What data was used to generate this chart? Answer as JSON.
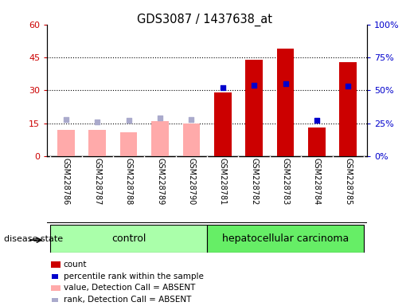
{
  "title": "GDS3087 / 1437638_at",
  "samples": [
    "GSM228786",
    "GSM228787",
    "GSM228788",
    "GSM228789",
    "GSM228790",
    "GSM228781",
    "GSM228782",
    "GSM228783",
    "GSM228784",
    "GSM228785"
  ],
  "groups": [
    "control",
    "control",
    "control",
    "control",
    "control",
    "hepatocellular carcinoma",
    "hepatocellular carcinoma",
    "hepatocellular carcinoma",
    "hepatocellular carcinoma",
    "hepatocellular carcinoma"
  ],
  "count_present": [
    null,
    null,
    null,
    null,
    null,
    29,
    44,
    49,
    13,
    43
  ],
  "count_absent": [
    12,
    12,
    11,
    16,
    15,
    null,
    null,
    null,
    null,
    null
  ],
  "percentile_present": [
    null,
    null,
    null,
    null,
    null,
    52,
    54,
    55,
    27,
    53
  ],
  "percentile_absent": [
    28,
    26,
    27,
    29,
    28,
    null,
    null,
    null,
    null,
    null
  ],
  "left_ylim": [
    0,
    60
  ],
  "left_yticks": [
    0,
    15,
    30,
    45,
    60
  ],
  "right_ylim": [
    0,
    100
  ],
  "right_yticks": [
    0,
    25,
    50,
    75,
    100
  ],
  "left_ytick_labels": [
    "0",
    "15",
    "30",
    "45",
    "60"
  ],
  "right_ytick_labels": [
    "0%",
    "25%",
    "50%",
    "75%",
    "100%"
  ],
  "color_count_present": "#cc0000",
  "color_count_absent": "#ffaaaa",
  "color_percentile_present": "#0000cc",
  "color_percentile_absent": "#aaaacc",
  "group_color_control": "#aaffaa",
  "group_color_hep": "#66ee66",
  "label_bg_color": "#cccccc",
  "disease_state_label": "disease state"
}
